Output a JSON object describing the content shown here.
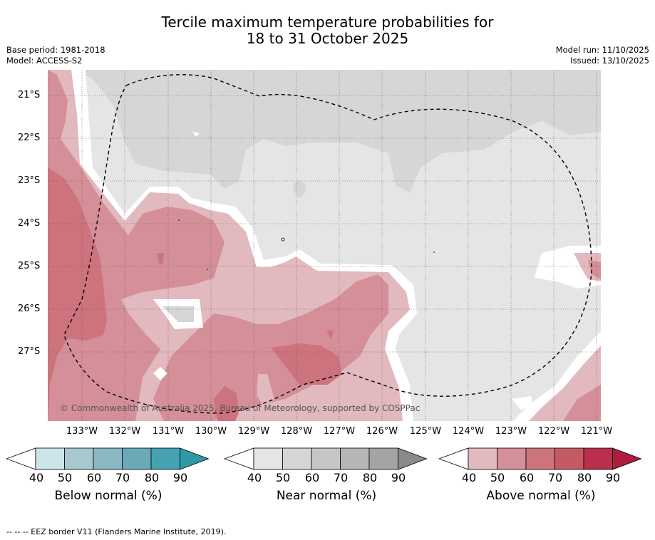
{
  "title_line1": "Tercile maximum temperature probabilities for",
  "title_line2": "18 to 31 October 2025",
  "meta_left": {
    "base_period": "Base period: 1981-2018",
    "model": "Model: ACCESS-S2"
  },
  "meta_right": {
    "model_run": "Model run: 11/10/2025",
    "issued": "Issued: 13/10/2025"
  },
  "lat_labels": [
    "21°S",
    "22°S",
    "23°S",
    "24°S",
    "25°S",
    "26°S",
    "27°S"
  ],
  "lon_labels": [
    "133°W",
    "132°W",
    "131°W",
    "130°W",
    "129°W",
    "128°W",
    "127°W",
    "126°W",
    "125°W",
    "124°W",
    "123°W",
    "122°W",
    "121°W"
  ],
  "copyright": "© Commonwealth of Australia 2025, Bureau of Meteorology, supported by COSPPac",
  "colorbars": [
    {
      "title": "Below normal (%)",
      "ticks": [
        "40",
        "50",
        "60",
        "70",
        "80",
        "90"
      ],
      "colors": [
        "#ffffff",
        "#cde4ea",
        "#a7c8cf",
        "#89b7c3",
        "#6aaab8",
        "#45a2b3",
        "#2e9aa8"
      ]
    },
    {
      "title": "Near normal (%)",
      "ticks": [
        "40",
        "50",
        "60",
        "70",
        "80",
        "90"
      ],
      "colors": [
        "#ffffff",
        "#e5e5e5",
        "#d6d6d6",
        "#c6c6c6",
        "#b6b6b6",
        "#a4a4a4",
        "#8a8a8a"
      ]
    },
    {
      "title": "Above normal (%)",
      "ticks": [
        "40",
        "50",
        "60",
        "70",
        "80",
        "90"
      ],
      "colors": [
        "#ffffff",
        "#e2b9bf",
        "#d58f98",
        "#cd737d",
        "#c55a67",
        "#ba2f4b",
        "#ad1d3d"
      ]
    }
  ],
  "footnote": "--  --  -- EEZ border V11 (Flanders Marine Institute, 2019).",
  "legend_colors": {
    "white": "#ffffff",
    "near_50": "#e5e5e5",
    "near_60": "#d6d6d6",
    "above_50": "#e2b9bf",
    "above_60": "#d58f98",
    "above_70": "#cd737d"
  }
}
